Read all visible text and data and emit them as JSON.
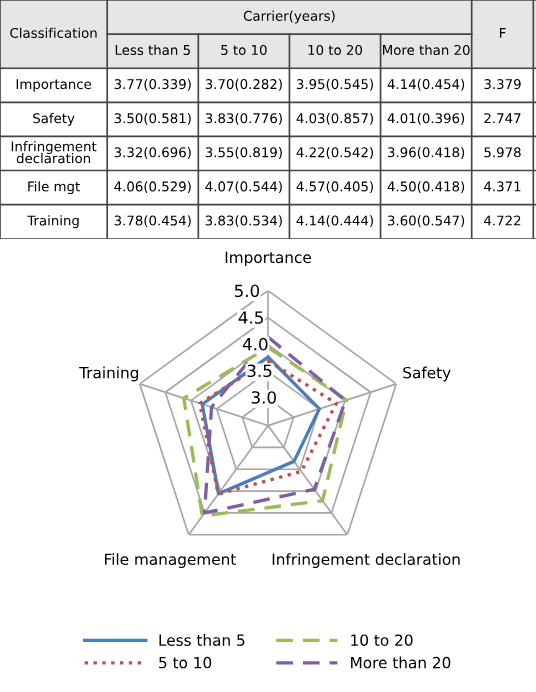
{
  "chart_data": [
    {
      "type": "other",
      "title": "Carrier(years)",
      "ylabel": "Classification",
      "categories": [
        "Less than 5",
        "5 to 10",
        "10 to 20",
        "More than 20",
        "F"
      ],
      "y_categories": [
        "Importance",
        "Safety",
        "Infringement declaration",
        "File mgt",
        "Training"
      ],
      "cell_labels": [
        [
          "3.77(0.339)",
          "3.70(0.282)",
          "3.95(0.545)",
          "4.14(0.454)",
          "3.379"
        ],
        [
          "3.50(0.581)",
          "3.83(0.776)",
          "4.03(0.857)",
          "4.01(0.396)",
          "2.747"
        ],
        [
          "3.32(0.696)",
          "3.55(0.819)",
          "4.22(0.542)",
          "3.96(0.418)",
          "5.978"
        ],
        [
          "4.06(0.529)",
          "4.07(0.544)",
          "4.57(0.405)",
          "4.50(0.418)",
          "4.371"
        ],
        [
          "3.78(0.454)",
          "3.83(0.534)",
          "4.14(0.444)",
          "3.60(0.547)",
          "4.722"
        ]
      ]
    },
    {
      "type": "radar",
      "categories": [
        "Importance",
        "Safety",
        "Infringement declaration",
        "File management",
        "Training"
      ],
      "ylim": [
        2.5,
        5.0
      ],
      "yticks": [
        {
          "value": 3.0,
          "label": "3.0"
        },
        {
          "value": 3.5,
          "label": "3.5"
        },
        {
          "value": 4.0,
          "label": "4.0"
        },
        {
          "value": 4.5,
          "label": "4.5"
        },
        {
          "value": 5.0,
          "label": "5.0"
        }
      ],
      "grid": true,
      "legend": "bottom",
      "marker": "none",
      "series": [
        {
          "name": "Less than 5",
          "color": "#4a7ebb",
          "line_style": "solid",
          "values": [
            3.77,
            3.5,
            3.32,
            4.06,
            3.78
          ]
        },
        {
          "name": "5 to 10",
          "color": "#c0504d",
          "line_style": "dotted",
          "values": [
            3.7,
            3.83,
            3.55,
            4.07,
            3.83
          ]
        },
        {
          "name": "10 to 20",
          "color": "#9bbb59",
          "line_style": "dashed",
          "values": [
            3.95,
            4.03,
            4.22,
            4.57,
            4.14
          ]
        },
        {
          "name": "More than 20",
          "color": "#7f5fa0",
          "line_style": "dashed",
          "values": [
            4.14,
            4.01,
            3.96,
            4.5,
            3.6
          ]
        }
      ]
    }
  ]
}
